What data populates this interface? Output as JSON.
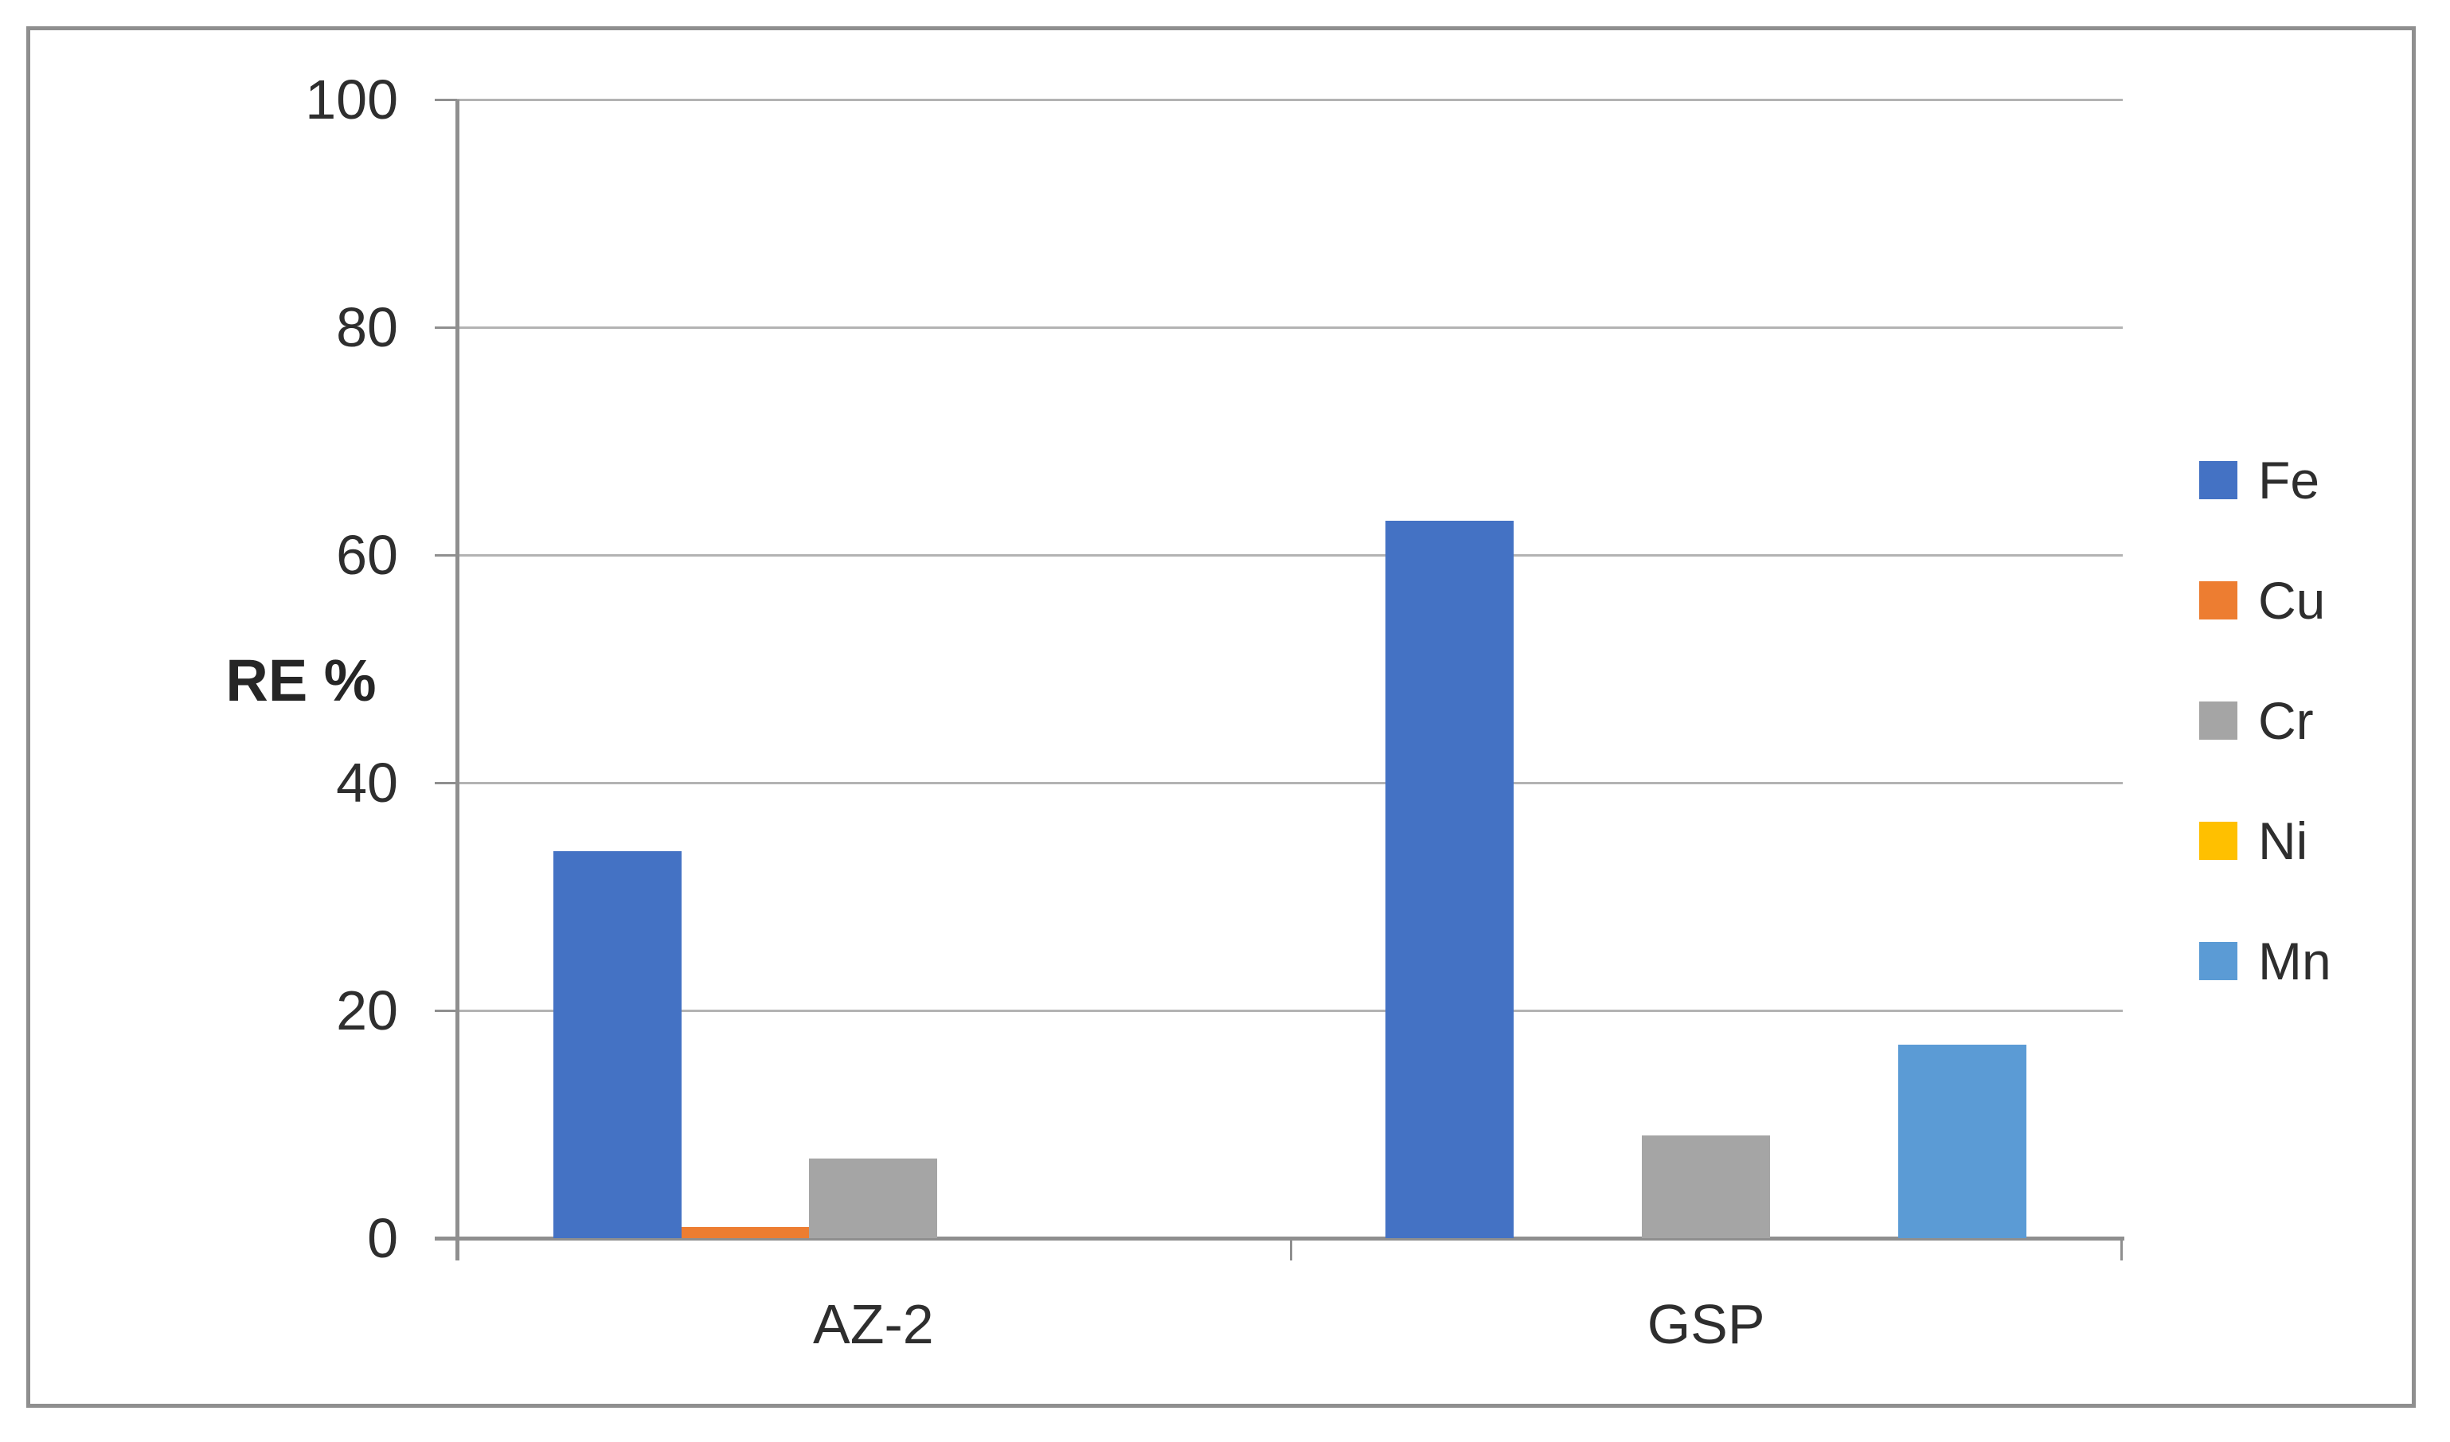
{
  "chart_data": {
    "type": "bar",
    "title": "",
    "xlabel": "",
    "ylabel": "RE %",
    "categories": [
      "AZ-2",
      "GSP"
    ],
    "series": [
      {
        "name": "Fe",
        "color": "#4472C4",
        "values": [
          34,
          63
        ]
      },
      {
        "name": "Cu",
        "color": "#ED7D31",
        "values": [
          1,
          0
        ]
      },
      {
        "name": "Cr",
        "color": "#A5A5A5",
        "values": [
          7,
          9
        ]
      },
      {
        "name": "Ni",
        "color": "#FFC000",
        "values": [
          0,
          0
        ]
      },
      {
        "name": "Mn",
        "color": "#5B9BD5",
        "values": [
          0,
          17
        ]
      }
    ],
    "ylim": [
      0,
      100
    ],
    "yticks": [
      0,
      20,
      40,
      60,
      80,
      100
    ],
    "grid": true,
    "legend_position": "right",
    "style": {
      "gridline_color": "#b3b3b3",
      "axis_color": "#8f8f8f",
      "text_color": "#2e2e2e",
      "background": "#ffffff",
      "border_color": "#8f8f8f"
    }
  }
}
